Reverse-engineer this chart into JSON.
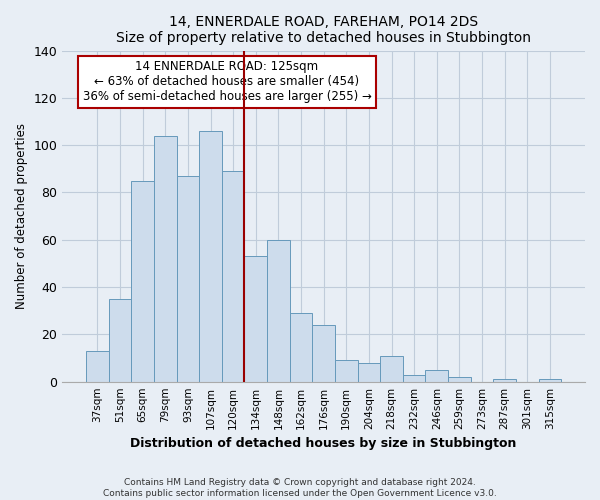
{
  "title": "14, ENNERDALE ROAD, FAREHAM, PO14 2DS",
  "subtitle": "Size of property relative to detached houses in Stubbington",
  "xlabel": "Distribution of detached houses by size in Stubbington",
  "ylabel": "Number of detached properties",
  "bar_labels": [
    "37sqm",
    "51sqm",
    "65sqm",
    "79sqm",
    "93sqm",
    "107sqm",
    "120sqm",
    "134sqm",
    "148sqm",
    "162sqm",
    "176sqm",
    "190sqm",
    "204sqm",
    "218sqm",
    "232sqm",
    "246sqm",
    "259sqm",
    "273sqm",
    "287sqm",
    "301sqm",
    "315sqm"
  ],
  "bar_heights": [
    13,
    35,
    85,
    104,
    87,
    106,
    89,
    53,
    60,
    29,
    24,
    9,
    8,
    11,
    3,
    5,
    2,
    0,
    1,
    0,
    1
  ],
  "bar_color": "#cddcec",
  "bar_edge_color": "#6699bb",
  "vline_color": "#990000",
  "ylim": [
    0,
    140
  ],
  "yticks": [
    0,
    20,
    40,
    60,
    80,
    100,
    120,
    140
  ],
  "annotation_title": "14 ENNERDALE ROAD: 125sqm",
  "annotation_line1": "← 63% of detached houses are smaller (454)",
  "annotation_line2": "36% of semi-detached houses are larger (255) →",
  "box_facecolor": "#ffffff",
  "box_edgecolor": "#aa0000",
  "footer_line1": "Contains HM Land Registry data © Crown copyright and database right 2024.",
  "footer_line2": "Contains public sector information licensed under the Open Government Licence v3.0.",
  "bg_color": "#e8eef5",
  "grid_color": "#c0ccda"
}
